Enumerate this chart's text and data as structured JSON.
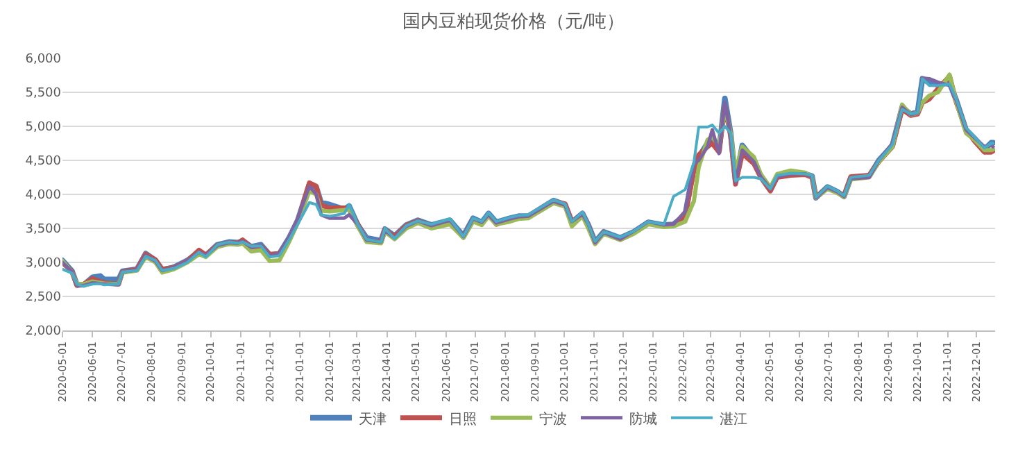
{
  "chart_data": {
    "type": "line",
    "title": "国内豆粕现货价格（元/吨）",
    "x": [
      "2020-05-01",
      "2020-05-11",
      "2020-05-16",
      "2020-05-23",
      "2020-06-01",
      "2020-06-09",
      "2020-06-13",
      "2020-06-28",
      "2020-07-02",
      "2020-07-17",
      "2020-07-26",
      "2020-08-05",
      "2020-08-12",
      "2020-08-24",
      "2020-09-07",
      "2020-09-19",
      "2020-09-26",
      "2020-10-08",
      "2020-10-20",
      "2020-10-29",
      "2020-11-03",
      "2020-11-12",
      "2020-11-22",
      "2020-12-01",
      "2020-12-11",
      "2020-12-21",
      "2020-12-30",
      "2021-01-11",
      "2021-01-18",
      "2021-01-23",
      "2021-02-01",
      "2021-02-16",
      "2021-02-21",
      "2021-03-02",
      "2021-03-11",
      "2021-03-26",
      "2021-03-30",
      "2021-04-09",
      "2021-04-21",
      "2021-05-03",
      "2021-05-17",
      "2021-06-05",
      "2021-06-19",
      "2021-06-29",
      "2021-07-08",
      "2021-07-15",
      "2021-07-23",
      "2021-08-06",
      "2021-08-15",
      "2021-08-25",
      "2021-09-20",
      "2021-10-02",
      "2021-10-09",
      "2021-10-20",
      "2021-10-26",
      "2021-11-02",
      "2021-11-11",
      "2021-11-28",
      "2021-12-12",
      "2021-12-27",
      "2022-01-12",
      "2022-01-22",
      "2022-02-03",
      "2022-02-12",
      "2022-02-17",
      "2022-02-26",
      "2022-03-03",
      "2022-03-10",
      "2022-03-16",
      "2022-03-22",
      "2022-03-27",
      "2022-04-03",
      "2022-04-15",
      "2022-04-22",
      "2022-05-02",
      "2022-05-09",
      "2022-05-23",
      "2022-06-07",
      "2022-06-14",
      "2022-06-18",
      "2022-06-30",
      "2022-07-10",
      "2022-07-17",
      "2022-07-24",
      "2022-08-12",
      "2022-08-22",
      "2022-09-05",
      "2022-09-15",
      "2022-09-24",
      "2022-10-01",
      "2022-10-06",
      "2022-10-13",
      "2022-10-22",
      "2022-11-03",
      "2022-11-10",
      "2022-11-20",
      "2022-11-29",
      "2022-12-09",
      "2022-12-16",
      "2022-12-18"
    ],
    "series": [
      {
        "name": "天津",
        "color": "#4f81bd",
        "values": [
          3030,
          2870,
          2670,
          2670,
          2780,
          2800,
          2750,
          2750,
          2870,
          2900,
          3130,
          3030,
          2890,
          2930,
          3030,
          3160,
          3100,
          3260,
          3300,
          3290,
          3320,
          3230,
          3260,
          3110,
          3130,
          3360,
          3620,
          4150,
          4110,
          3880,
          3850,
          3780,
          3830,
          3550,
          3360,
          3320,
          3490,
          3390,
          3550,
          3620,
          3550,
          3620,
          3390,
          3650,
          3590,
          3720,
          3590,
          3650,
          3680,
          3680,
          3910,
          3850,
          3590,
          3720,
          3550,
          3300,
          3450,
          3360,
          3450,
          3590,
          3550,
          3560,
          3700,
          4400,
          4550,
          4750,
          4800,
          4650,
          5410,
          4900,
          4200,
          4720,
          4500,
          4270,
          4070,
          4270,
          4300,
          4300,
          4270,
          3950,
          4110,
          4040,
          3970,
          4240,
          4270,
          4500,
          4720,
          5280,
          5180,
          5210,
          5700,
          5640,
          5610,
          5640,
          5380,
          4950,
          4820,
          4660,
          4760,
          4760
        ]
      },
      {
        "name": "日照",
        "color": "#c0504d",
        "values": [
          3000,
          2860,
          2660,
          2680,
          2760,
          2720,
          2700,
          2680,
          2860,
          2900,
          3120,
          3040,
          2900,
          2920,
          3020,
          3180,
          3110,
          3250,
          3290,
          3280,
          3330,
          3220,
          3240,
          3120,
          3120,
          3350,
          3600,
          4170,
          4120,
          3840,
          3800,
          3800,
          3780,
          3560,
          3320,
          3300,
          3480,
          3380,
          3540,
          3610,
          3540,
          3600,
          3370,
          3630,
          3570,
          3700,
          3560,
          3630,
          3660,
          3670,
          3900,
          3860,
          3600,
          3710,
          3540,
          3280,
          3440,
          3340,
          3440,
          3580,
          3540,
          3550,
          3680,
          4350,
          4580,
          4700,
          4750,
          4620,
          5300,
          4850,
          4150,
          4600,
          4450,
          4250,
          4050,
          4250,
          4280,
          4290,
          4250,
          3960,
          4100,
          4030,
          3980,
          4260,
          4280,
          4480,
          4700,
          5250,
          5160,
          5180,
          5350,
          5400,
          5550,
          5740,
          5350,
          4950,
          4780,
          4620,
          4620,
          4640
        ]
      },
      {
        "name": "宁波",
        "color": "#9bbb59",
        "values": [
          3020,
          2850,
          2680,
          2680,
          2720,
          2700,
          2690,
          2680,
          2850,
          2880,
          3080,
          3000,
          2850,
          2900,
          3000,
          3120,
          3080,
          3230,
          3270,
          3260,
          3280,
          3160,
          3180,
          3020,
          3030,
          3300,
          3580,
          4050,
          4000,
          3760,
          3750,
          3770,
          3780,
          3530,
          3300,
          3280,
          3450,
          3340,
          3500,
          3580,
          3500,
          3560,
          3360,
          3600,
          3550,
          3680,
          3560,
          3600,
          3640,
          3650,
          3870,
          3820,
          3530,
          3680,
          3500,
          3270,
          3420,
          3330,
          3420,
          3560,
          3520,
          3530,
          3600,
          3900,
          4400,
          4800,
          4850,
          4700,
          5250,
          4900,
          4350,
          4700,
          4550,
          4300,
          4100,
          4300,
          4350,
          4320,
          4260,
          3950,
          4080,
          4020,
          3960,
          4220,
          4250,
          4480,
          4700,
          5320,
          5170,
          5200,
          5350,
          5450,
          5500,
          5760,
          5350,
          4900,
          4800,
          4650,
          4650,
          4660
        ]
      },
      {
        "name": "防城",
        "color": "#8064a2",
        "values": [
          3000,
          2860,
          2660,
          2660,
          2700,
          2690,
          2680,
          2670,
          2860,
          2890,
          3100,
          3020,
          2880,
          2920,
          3020,
          3150,
          3100,
          3250,
          3290,
          3280,
          3310,
          3220,
          3250,
          3100,
          3120,
          3380,
          3650,
          4120,
          4000,
          3700,
          3650,
          3650,
          3700,
          3560,
          3330,
          3300,
          3470,
          3360,
          3530,
          3610,
          3540,
          3620,
          3380,
          3640,
          3590,
          3700,
          3580,
          3640,
          3670,
          3680,
          3900,
          3840,
          3600,
          3710,
          3560,
          3290,
          3440,
          3340,
          3460,
          3600,
          3550,
          3560,
          3750,
          4450,
          4500,
          4700,
          4950,
          4600,
          5350,
          4850,
          4180,
          4650,
          4480,
          4260,
          4080,
          4260,
          4300,
          4300,
          4260,
          3950,
          4100,
          4040,
          3970,
          4230,
          4250,
          4500,
          4750,
          5280,
          5170,
          5200,
          5710,
          5700,
          5650,
          5600,
          5380,
          4950,
          4830,
          4700,
          4720,
          4700
        ]
      },
      {
        "name": "湛江",
        "color": "#4bacc6",
        "values": [
          2900,
          2840,
          2680,
          2650,
          2680,
          2690,
          2670,
          2680,
          2860,
          2880,
          3090,
          3030,
          2880,
          2910,
          3000,
          3150,
          3080,
          3260,
          3300,
          3280,
          3300,
          3240,
          3240,
          3080,
          3100,
          3330,
          3560,
          3880,
          3850,
          3700,
          3680,
          3720,
          3850,
          3560,
          3340,
          3300,
          3500,
          3350,
          3540,
          3610,
          3560,
          3640,
          3380,
          3650,
          3600,
          3730,
          3600,
          3660,
          3690,
          3700,
          3920,
          3860,
          3600,
          3740,
          3560,
          3310,
          3450,
          3370,
          3460,
          3600,
          3560,
          3970,
          4070,
          4470,
          4990,
          4990,
          5020,
          4900,
          5000,
          4900,
          4200,
          4250,
          4250,
          4230,
          4080,
          4280,
          4310,
          4300,
          4280,
          3960,
          4120,
          4050,
          3980,
          4250,
          4280,
          4500,
          4730,
          5250,
          5180,
          5200,
          5700,
          5600,
          5600,
          5620,
          5400,
          4980,
          4840,
          4680,
          4750,
          4750
        ]
      }
    ],
    "xlim": [
      "2020-05-01",
      "2022-12-20"
    ],
    "xticks": [
      "2020-05-01",
      "2020-06-01",
      "2020-07-01",
      "2020-08-01",
      "2020-09-01",
      "2020-10-01",
      "2020-11-01",
      "2020-12-01",
      "2021-01-01",
      "2021-02-01",
      "2021-03-01",
      "2021-04-01",
      "2021-05-01",
      "2021-06-01",
      "2021-07-01",
      "2021-08-01",
      "2021-09-01",
      "2021-10-01",
      "2021-11-01",
      "2021-12-01",
      "2022-01-01",
      "2022-02-01",
      "2022-03-01",
      "2022-04-01",
      "2022-05-01",
      "2022-06-01",
      "2022-07-01",
      "2022-08-01",
      "2022-09-01",
      "2022-10-01",
      "2022-11-01",
      "2022-12-01"
    ],
    "ylim": [
      2000,
      6000
    ],
    "yticks": [
      {
        "value": 2000,
        "label": "2,000"
      },
      {
        "value": 2500,
        "label": "2,500"
      },
      {
        "value": 3000,
        "label": "3,000"
      },
      {
        "value": 3500,
        "label": "3,500"
      },
      {
        "value": 4000,
        "label": "4,000"
      },
      {
        "value": 4500,
        "label": "4,500"
      },
      {
        "value": 5000,
        "label": "5,000"
      },
      {
        "value": 5500,
        "label": "5,500"
      },
      {
        "value": 6000,
        "label": "6,000"
      }
    ],
    "grid": "y",
    "legend": "bottom",
    "marker": "none",
    "line_style": "solid"
  }
}
